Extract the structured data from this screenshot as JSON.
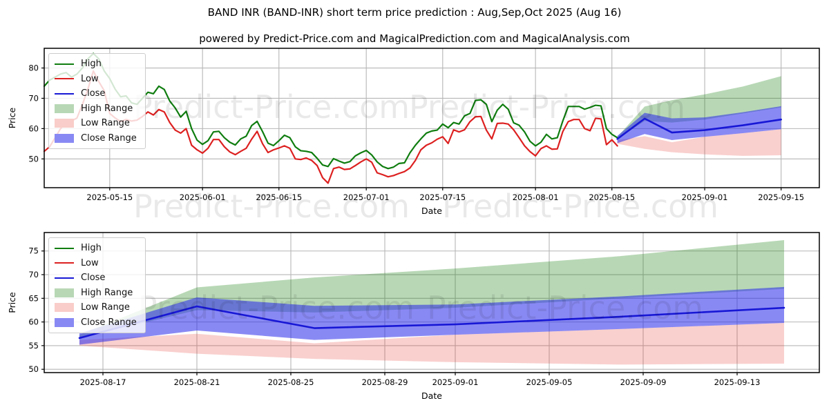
{
  "header": {
    "title": "BAND INR (BAND-INR) short term price prediction : Aug,Sep,Oct 2025 (Aug 16)",
    "subtitle": "powered by Predict-Price.com and MagicalPrediction.com and MagicalAnalysis.com"
  },
  "watermark": {
    "text": "Predict-Price.com"
  },
  "colors": {
    "high_line": "#0f7d0f",
    "low_line": "#dd2020",
    "close_line": "#1717d6",
    "high_band": "rgba(20,125,10,0.30)",
    "low_band": "rgba(230,60,50,0.24)",
    "close_band": "rgba(40,40,235,0.55)",
    "high_band_legend": "#b8d8b5",
    "low_band_legend": "#f9cdc9",
    "close_band_legend": "#8989f4",
    "grid": "#b6b6b6",
    "spine": "#000000"
  },
  "legend": {
    "items": [
      {
        "label": "High",
        "type": "line",
        "color": "#0f7d0f"
      },
      {
        "label": "Low",
        "type": "line",
        "color": "#dd2020"
      },
      {
        "label": "Close",
        "type": "line",
        "color": "#1717d6"
      },
      {
        "label": "High Range",
        "type": "patch",
        "color": "#b8d8b5"
      },
      {
        "label": "Low Range",
        "type": "patch",
        "color": "#f9cdc9"
      },
      {
        "label": "Close Range",
        "type": "patch",
        "color": "#8989f4"
      }
    ]
  },
  "chart_data": [
    {
      "type": "line",
      "name": "price-history-and-forecast",
      "xlabel": "Date",
      "ylabel": "Price",
      "grid": true,
      "legend_position": "upper left",
      "legend": [
        "High",
        "Low",
        "Close",
        "High Range",
        "Low Range",
        "Close Range"
      ],
      "xlim": [
        "2025-05-03",
        "2025-09-22"
      ],
      "ylim": [
        40.5,
        86.5
      ],
      "yticks": [
        50,
        60,
        70,
        80
      ],
      "xticks": [
        "2025-05-15",
        "2025-06-01",
        "2025-06-15",
        "2025-07-01",
        "2025-07-15",
        "2025-08-01",
        "2025-08-15",
        "2025-09-01",
        "2025-09-15"
      ],
      "hist_x_start": "2025-05-03",
      "hist_x_step_days": 1,
      "series": [
        {
          "name": "High",
          "color": "#0f7d0f",
          "width": 2.2,
          "use_hist_dates": true,
          "values": [
            74,
            76,
            77,
            78,
            78.5,
            77,
            78,
            80,
            83,
            84.8,
            83,
            79,
            76.5,
            73,
            70.5,
            70.8,
            68.5,
            68,
            70,
            72,
            71.5,
            74,
            72.9,
            69.1,
            66.8,
            63.8,
            65.7,
            60,
            56.2,
            54.8,
            56,
            58.9,
            59.1,
            57,
            55.5,
            54.6,
            56.6,
            57.5,
            61,
            62.4,
            59,
            55.2,
            54.4,
            56,
            57.8,
            57,
            54,
            52.7,
            52.5,
            52.1,
            50.2,
            48,
            47.5,
            50.1,
            49.3,
            48.6,
            49.1,
            51,
            52,
            52.8,
            51.3,
            49,
            47.5,
            46.8,
            47.3,
            48.5,
            48.7,
            52,
            54.5,
            56.6,
            58.5,
            59.2,
            59.5,
            61.5,
            60.3,
            62,
            61.5,
            64.2,
            65,
            69.3,
            69.5,
            68,
            62.3,
            66.1,
            68,
            66.4,
            61.9,
            61.1,
            58.9,
            55.8,
            54.3,
            55.5,
            58.1,
            56.6,
            57,
            62.5,
            67.3,
            67.3,
            67.3,
            66.4,
            67,
            67.7,
            67.5,
            60,
            58.1,
            57
          ]
        },
        {
          "name": "Low",
          "color": "#dd2020",
          "width": 2.2,
          "use_hist_dates": true,
          "values": [
            52.5,
            54,
            57,
            60,
            62,
            62.5,
            63.5,
            68,
            73,
            79,
            75.5,
            72.5,
            65,
            63.5,
            62.3,
            63,
            62.5,
            62.8,
            64,
            65.5,
            64.5,
            66.3,
            65.5,
            62,
            59.5,
            58.5,
            60,
            54.5,
            53,
            51.9,
            53.5,
            56.4,
            56.4,
            54,
            52.3,
            51.4,
            52.5,
            53.5,
            56.5,
            59.1,
            55,
            52.1,
            53,
            53.6,
            54.3,
            53.5,
            50,
            49.8,
            50.3,
            49.5,
            47.8,
            43.8,
            42,
            46.8,
            47.3,
            46.5,
            46.7,
            47.8,
            49,
            50,
            48.9,
            45.4,
            44.8,
            44.1,
            44.5,
            45.2,
            45.8,
            47,
            49.5,
            53,
            54.5,
            55.3,
            56.5,
            57.3,
            55.1,
            59.6,
            58.9,
            59.6,
            62.3,
            63.9,
            64,
            59.5,
            56.6,
            61.7,
            61.8,
            61.5,
            59.6,
            57,
            54.3,
            52.4,
            51,
            53.4,
            54.3,
            53.2,
            53.3,
            59,
            62.3,
            63,
            63,
            60,
            59.3,
            63.4,
            63.2,
            54.7,
            56.3,
            54.3
          ]
        },
        {
          "name": "Close",
          "color": "#1717d6",
          "width": 2.6,
          "dates": [
            "2025-08-16",
            "2025-08-21",
            "2025-08-26",
            "2025-09-01",
            "2025-09-08",
            "2025-09-15"
          ],
          "values": [
            56.6,
            63.3,
            58.7,
            59.5,
            61.1,
            63.0
          ]
        }
      ],
      "bands": [
        {
          "name": "High Range",
          "color": "rgba(20,125,10,0.30)",
          "dates": [
            "2025-08-16",
            "2025-08-21",
            "2025-08-26",
            "2025-09-01",
            "2025-09-08",
            "2025-09-15"
          ],
          "upper": [
            57.3,
            67.3,
            69.4,
            71.3,
            73.9,
            77.3
          ],
          "lower": [
            56.6,
            62.5,
            62.0,
            63.0,
            65.0,
            67.0
          ]
        },
        {
          "name": "Low Range",
          "color": "rgba(230,60,50,0.24)",
          "dates": [
            "2025-08-16",
            "2025-08-21",
            "2025-08-26",
            "2025-09-01",
            "2025-09-08",
            "2025-09-15"
          ],
          "upper": [
            56.2,
            57.5,
            55.5,
            57.3,
            58.5,
            59.8
          ],
          "lower": [
            55.0,
            53.3,
            52.2,
            51.5,
            51.0,
            51.2
          ]
        },
        {
          "name": "Close Range",
          "color": "rgba(40,40,235,0.55)",
          "dates": [
            "2025-08-16",
            "2025-08-21",
            "2025-08-26",
            "2025-09-01",
            "2025-09-08",
            "2025-09-15"
          ],
          "upper": [
            57.6,
            65.2,
            63.4,
            63.7,
            65.4,
            67.4
          ],
          "lower": [
            55.2,
            58.2,
            56.2,
            57.3,
            58.5,
            59.8
          ]
        }
      ]
    },
    {
      "type": "line",
      "name": "forecast-detail",
      "xlabel": "Date",
      "ylabel": "Price",
      "grid": true,
      "legend_position": "upper left",
      "legend": [
        "High",
        "Low",
        "Close",
        "High Range",
        "Low Range",
        "Close Range"
      ],
      "xlim": [
        "2025-08-14T12:00:00",
        "2025-09-16T12:00:00"
      ],
      "ylim": [
        49.3,
        78.9
      ],
      "yticks": [
        50,
        55,
        60,
        65,
        70,
        75
      ],
      "xticks": [
        "2025-08-17",
        "2025-08-21",
        "2025-08-25",
        "2025-08-29",
        "2025-09-01",
        "2025-09-05",
        "2025-09-09",
        "2025-09-13"
      ],
      "series": [
        {
          "name": "Close",
          "color": "#1717d6",
          "width": 2.6,
          "dates": [
            "2025-08-16",
            "2025-08-21",
            "2025-08-26",
            "2025-09-01",
            "2025-09-08",
            "2025-09-15"
          ],
          "values": [
            56.6,
            63.3,
            58.7,
            59.5,
            61.1,
            63.0
          ]
        }
      ],
      "bands": [
        {
          "name": "High Range",
          "color": "rgba(20,125,10,0.30)",
          "dates": [
            "2025-08-16",
            "2025-08-21",
            "2025-08-26",
            "2025-09-01",
            "2025-09-08",
            "2025-09-15"
          ],
          "upper": [
            57.3,
            67.3,
            69.4,
            71.3,
            73.9,
            77.3
          ],
          "lower": [
            56.6,
            62.5,
            62.0,
            63.0,
            65.0,
            67.0
          ]
        },
        {
          "name": "Low Range",
          "color": "rgba(230,60,50,0.24)",
          "dates": [
            "2025-08-16",
            "2025-08-21",
            "2025-08-26",
            "2025-09-01",
            "2025-09-08",
            "2025-09-15"
          ],
          "upper": [
            56.2,
            57.5,
            55.5,
            57.3,
            58.5,
            59.8
          ],
          "lower": [
            55.0,
            53.3,
            52.2,
            51.5,
            51.0,
            51.2
          ]
        },
        {
          "name": "Close Range",
          "color": "rgba(40,40,235,0.55)",
          "dates": [
            "2025-08-16",
            "2025-08-21",
            "2025-08-26",
            "2025-09-01",
            "2025-09-08",
            "2025-09-15"
          ],
          "upper": [
            57.6,
            65.2,
            63.4,
            63.7,
            65.4,
            67.4
          ],
          "lower": [
            55.2,
            58.2,
            56.2,
            57.3,
            58.5,
            59.8
          ]
        }
      ]
    }
  ]
}
